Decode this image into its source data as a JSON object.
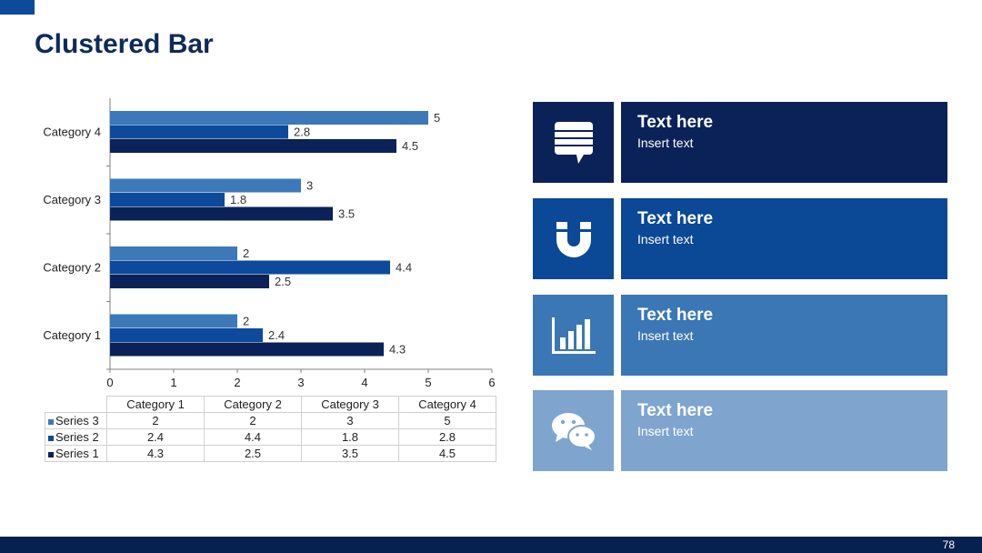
{
  "title": "Clustered Bar",
  "page_number": "78",
  "colors": {
    "series1": "#0b2258",
    "series2": "#0d4a9b",
    "series3": "#3d79b8",
    "card1": "#0b2258",
    "card2": "#0b4896",
    "card3": "#3b77b4",
    "card4": "#7fa5cf"
  },
  "chart_data": {
    "type": "bar",
    "orientation": "horizontal",
    "title": "",
    "xlabel": "",
    "ylabel": "",
    "categories": [
      "Category 1",
      "Category 2",
      "Category 3",
      "Category 4"
    ],
    "series": [
      {
        "name": "Series 1",
        "values": [
          4.3,
          2.5,
          3.5,
          4.5
        ]
      },
      {
        "name": "Series 2",
        "values": [
          2.4,
          4.4,
          1.8,
          2.8
        ]
      },
      {
        "name": "Series 3",
        "values": [
          2,
          2,
          3,
          5
        ]
      }
    ],
    "xlim": [
      0,
      6
    ],
    "xticks": [
      "0",
      "1",
      "2",
      "3",
      "4",
      "5",
      "6"
    ],
    "data_labels": true,
    "legend": "data-table"
  },
  "table": {
    "headers": [
      "Category 1",
      "Category 2",
      "Category 3",
      "Category 4"
    ],
    "rows": [
      {
        "name": "Series 3",
        "values": [
          "2",
          "2",
          "3",
          "5"
        ]
      },
      {
        "name": "Series 2",
        "values": [
          "2.4",
          "4.4",
          "1.8",
          "2.8"
        ]
      },
      {
        "name": "Series 1",
        "values": [
          "4.3",
          "2.5",
          "3.5",
          "4.5"
        ]
      }
    ]
  },
  "cards": [
    {
      "icon": "chat-list-icon",
      "title": "Text here",
      "text": "Insert text"
    },
    {
      "icon": "magnet-icon",
      "title": "Text here",
      "text": "Insert text"
    },
    {
      "icon": "bar-chart-icon",
      "title": "Text here",
      "text": "Insert text"
    },
    {
      "icon": "wechat-icon",
      "title": "Text here",
      "text": "Insert text"
    }
  ]
}
